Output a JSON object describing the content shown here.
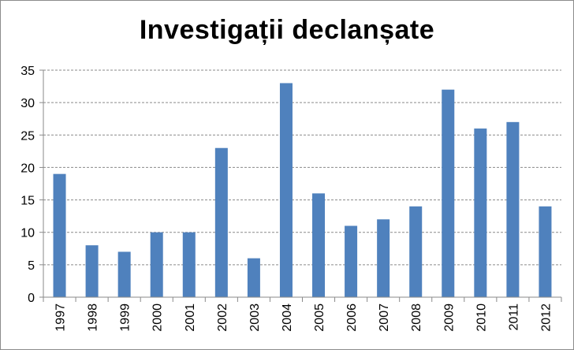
{
  "chart_data": {
    "type": "bar",
    "title": "Investigații declanșate",
    "xlabel": "",
    "ylabel": "",
    "categories": [
      "1997",
      "1998",
      "1999",
      "2000",
      "2001",
      "2002",
      "2003",
      "2004",
      "2005",
      "2006",
      "2007",
      "2008",
      "2009",
      "2010",
      "2011",
      "2012"
    ],
    "values": [
      19,
      8,
      7,
      10,
      10,
      23,
      6,
      33,
      16,
      11,
      12,
      14,
      32,
      26,
      27,
      14
    ],
    "ylim": [
      0,
      35
    ],
    "yticks": [
      0,
      5,
      10,
      15,
      20,
      25,
      30,
      35
    ],
    "grid": true,
    "legend": "none",
    "bar_color": "#4f81bd"
  }
}
